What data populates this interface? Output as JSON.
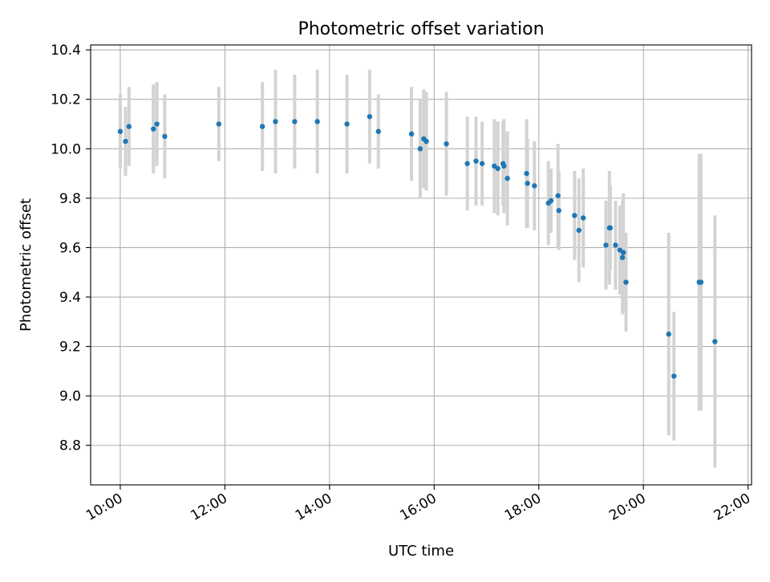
{
  "chart_data": {
    "type": "scatter",
    "title": "Photometric offset variation",
    "xlabel": "UTC time",
    "ylabel": "Photometric offset",
    "x_ticks": [
      "10:00",
      "12:00",
      "14:00",
      "16:00",
      "18:00",
      "20:00",
      "22:00"
    ],
    "y_ticks": [
      "8.8",
      "9.0",
      "9.2",
      "9.4",
      "9.6",
      "9.8",
      "10.0",
      "10.2",
      "10.4"
    ],
    "xlim": [
      "09:26",
      "22:04"
    ],
    "ylim": [
      8.64,
      10.42
    ],
    "grid": true,
    "point_color": "#1f77b4",
    "errorbar_color": "#d3d3d3",
    "series": [
      {
        "x": [
          "10:00",
          "10:06",
          "10:10",
          "10:38",
          "10:42",
          "10:51",
          "11:53",
          "12:43",
          "12:58",
          "13:20",
          "13:46",
          "14:20",
          "14:46",
          "14:56",
          "15:34",
          "15:44",
          "15:48",
          "15:51",
          "16:14",
          "16:38",
          "16:48",
          "16:55",
          "17:09",
          "17:13",
          "17:19",
          "17:20",
          "17:24",
          "17:46",
          "17:47",
          "17:55",
          "18:11",
          "18:14",
          "18:22",
          "18:23",
          "18:41",
          "18:46",
          "18:51",
          "19:17",
          "19:21",
          "19:22",
          "19:28",
          "19:33",
          "19:36",
          "19:37",
          "19:40"
        ],
        "y": [
          10.07,
          10.03,
          10.09,
          10.08,
          10.1,
          10.05,
          10.1,
          10.09,
          10.11,
          10.11,
          10.11,
          10.1,
          10.13,
          10.07,
          10.06,
          10.0,
          10.04,
          10.03,
          10.02,
          9.94,
          9.95,
          9.94,
          9.93,
          9.92,
          9.94,
          9.93,
          9.88,
          9.9,
          9.86,
          9.85,
          9.78,
          9.79,
          9.81,
          9.75,
          9.73,
          9.67,
          9.72,
          9.61,
          9.68,
          9.68,
          9.61,
          9.59,
          9.56,
          9.58,
          9.46
        ],
        "err": [
          0.15,
          0.14,
          0.16,
          0.18,
          0.17,
          0.17,
          0.15,
          0.18,
          0.21,
          0.19,
          0.21,
          0.2,
          0.19,
          0.15,
          0.19,
          0.2,
          0.2,
          0.2,
          0.21,
          0.19,
          0.18,
          0.17,
          0.19,
          0.19,
          0.17,
          0.19,
          0.19,
          0.22,
          0.18,
          0.18,
          0.17,
          0.13,
          0.21,
          0.16,
          0.18,
          0.21,
          0.2,
          0.18,
          0.23,
          0.17,
          0.18,
          0.18,
          0.23,
          0.24,
          0.2
        ]
      },
      {
        "x": [
          "20:29",
          "20:35",
          "21:04",
          "21:06",
          "21:22"
        ],
        "y": [
          9.25,
          9.08,
          9.46,
          9.46,
          9.22
        ],
        "err": [
          0.41,
          0.26,
          0.52,
          0.52,
          0.51
        ]
      }
    ]
  }
}
